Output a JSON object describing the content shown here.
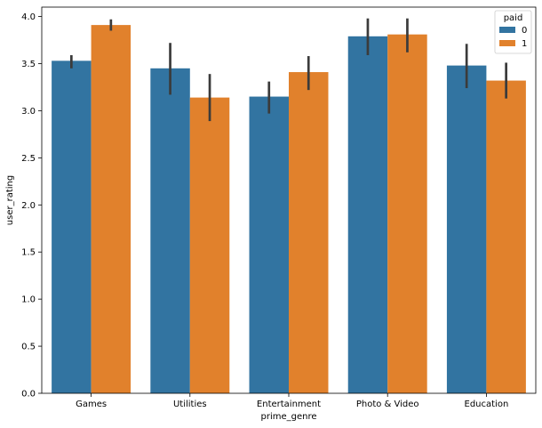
{
  "chart_data": {
    "type": "bar",
    "xlabel": "prime_genre",
    "ylabel": "user_rating",
    "categories": [
      "Games",
      "Utilities",
      "Entertainment",
      "Photo & Video",
      "Education"
    ],
    "ylim": [
      0,
      4.1
    ],
    "yticks": [
      "0.0",
      "0.5",
      "1.0",
      "1.5",
      "2.0",
      "2.5",
      "3.0",
      "3.5",
      "4.0"
    ],
    "grid": false,
    "legend": {
      "title": "paid",
      "placement": "top-right"
    },
    "series": [
      {
        "name": "0",
        "color": "#3274a1",
        "values": [
          3.53,
          3.45,
          3.15,
          3.79,
          3.48
        ],
        "ci_low": [
          3.45,
          3.17,
          2.97,
          3.59,
          3.24
        ],
        "ci_high": [
          3.59,
          3.72,
          3.31,
          3.98,
          3.71
        ]
      },
      {
        "name": "1",
        "color": "#e1812c",
        "values": [
          3.91,
          3.14,
          3.41,
          3.81,
          3.32
        ],
        "ci_low": [
          3.85,
          2.89,
          3.22,
          3.62,
          3.13
        ],
        "ci_high": [
          3.97,
          3.39,
          3.58,
          3.98,
          3.51
        ]
      }
    ],
    "errorbar_color": "#3b3b3b"
  }
}
